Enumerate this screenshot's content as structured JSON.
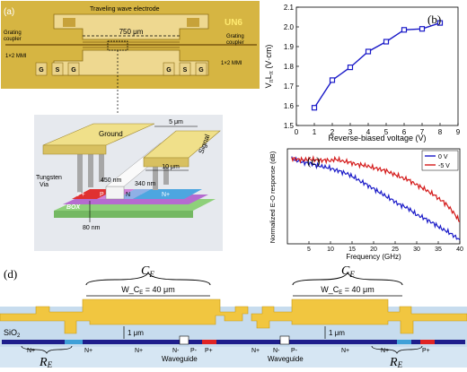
{
  "panels": {
    "a": {
      "label": "(a)",
      "chip": {
        "electrode_label": "Traveling wave electrode",
        "logo": "UN6",
        "length_label": "750 μm",
        "grating_left": [
          "Grating",
          "coupler"
        ],
        "grating_right": [
          "Grating",
          "coupler"
        ],
        "mmi_left": "1×2 MMI",
        "mmi_right": "1×2 MMI",
        "pads_left": [
          "G",
          "S",
          "G"
        ],
        "pads_right": [
          "G",
          "S",
          "G"
        ]
      },
      "cross_section": {
        "ground": "Ground",
        "signal": "Signal",
        "gap": "5 μm",
        "signal_width": "10 μm",
        "via": [
          "Tungsten",
          "Via"
        ],
        "p_plus": "P+",
        "p": "P",
        "n": "N",
        "n_plus": "N+",
        "box": "BOX",
        "w1": "450 nm",
        "w2": "340 nm",
        "h": "80 nm"
      }
    },
    "b": {
      "label": "(b)"
    },
    "c": {
      "label": "(c)"
    },
    "d": {
      "label": "(d)",
      "ce": "C",
      "ce_sub": "E",
      "width_label": "W_C",
      "width_sub": "E",
      "width_value": " = 40 μm",
      "thickness": "1 μm",
      "sio2": "SiO",
      "sio2_sub": "2",
      "re": "R",
      "re_sub": "E",
      "n_plus": "N+",
      "p_plus": "P+",
      "n_minus": "N-",
      "p_minus": "P-",
      "waveguide": "Waveguide"
    }
  },
  "chart_data": [
    {
      "type": "line",
      "panel": "b",
      "x": [
        1,
        2,
        3,
        4,
        5,
        6,
        7,
        8
      ],
      "series": [
        {
          "values": [
            1.59,
            1.73,
            1.795,
            1.875,
            1.925,
            1.985,
            1.99,
            2.02
          ],
          "color": "#1a1ac8"
        }
      ],
      "xlabel": "Reverse-biased voltage (V)",
      "ylabel": "V  L  (V·cm)",
      "ylabel_parts": {
        "v": "V",
        "sub1": "π",
        "l": "L",
        "sub2": "π",
        "unit": " (V·cm)"
      },
      "xlim": [
        0,
        9
      ],
      "ylim": [
        1.5,
        2.1
      ],
      "xticks": [
        "0",
        "1",
        "2",
        "3",
        "4",
        "5",
        "6",
        "7",
        "8",
        "9"
      ],
      "yticks": [
        "1.5",
        "1.6",
        "1.7",
        "1.8",
        "1.9",
        "2.0",
        "2.1"
      ]
    },
    {
      "type": "line",
      "panel": "c",
      "xlabel": "Frequency (GHz)",
      "ylabel": "Normalized E-O response (dB)",
      "xlim": [
        0,
        40
      ],
      "ylim": [
        -20,
        2
      ],
      "xticks": [
        "5",
        "10",
        "15",
        "20",
        "25",
        "30",
        "35",
        "40"
      ],
      "legend": "top-right",
      "x": [
        1,
        2,
        3,
        4,
        5,
        6,
        7,
        8,
        9,
        10,
        11,
        12,
        13,
        14,
        15,
        16,
        17,
        18,
        19,
        20,
        21,
        22,
        23,
        24,
        25,
        26,
        27,
        28,
        29,
        30,
        31,
        32,
        33,
        34,
        35,
        36,
        37,
        38,
        39,
        40
      ],
      "series": [
        {
          "name": "0 V",
          "color": "#1a1ac8",
          "values": [
            -0.3,
            -0.6,
            -0.9,
            -1.2,
            -1.3,
            -1.6,
            -1.9,
            -2.1,
            -2.3,
            -2.5,
            -2.9,
            -3.1,
            -3.5,
            -3.8,
            -4.4,
            -4.9,
            -5.6,
            -6.0,
            -6.7,
            -7.2,
            -7.9,
            -8.4,
            -9.1,
            -9.6,
            -10.3,
            -10.9,
            -11.3,
            -11.8,
            -12.5,
            -13.3,
            -13.7,
            -14.2,
            -14.8,
            -15.3,
            -16.0,
            -16.6,
            -17.1,
            -17.7,
            -18.4,
            -19.1
          ]
        },
        {
          "name": "-5 V",
          "color": "#d41a1a",
          "values": [
            -0.2,
            -0.4,
            -0.5,
            -0.6,
            -0.4,
            -0.5,
            -0.6,
            -0.7,
            -0.6,
            -0.8,
            -0.4,
            -0.6,
            -0.9,
            -1.0,
            -1.3,
            -1.6,
            -1.7,
            -1.9,
            -2.1,
            -2.4,
            -2.6,
            -2.9,
            -3.1,
            -3.6,
            -4.0,
            -4.4,
            -4.9,
            -5.1,
            -5.8,
            -6.3,
            -6.9,
            -7.4,
            -8.1,
            -8.6,
            -9.5,
            -10.1,
            -11.0,
            -12.1,
            -13.4,
            -14.9
          ]
        }
      ]
    }
  ]
}
